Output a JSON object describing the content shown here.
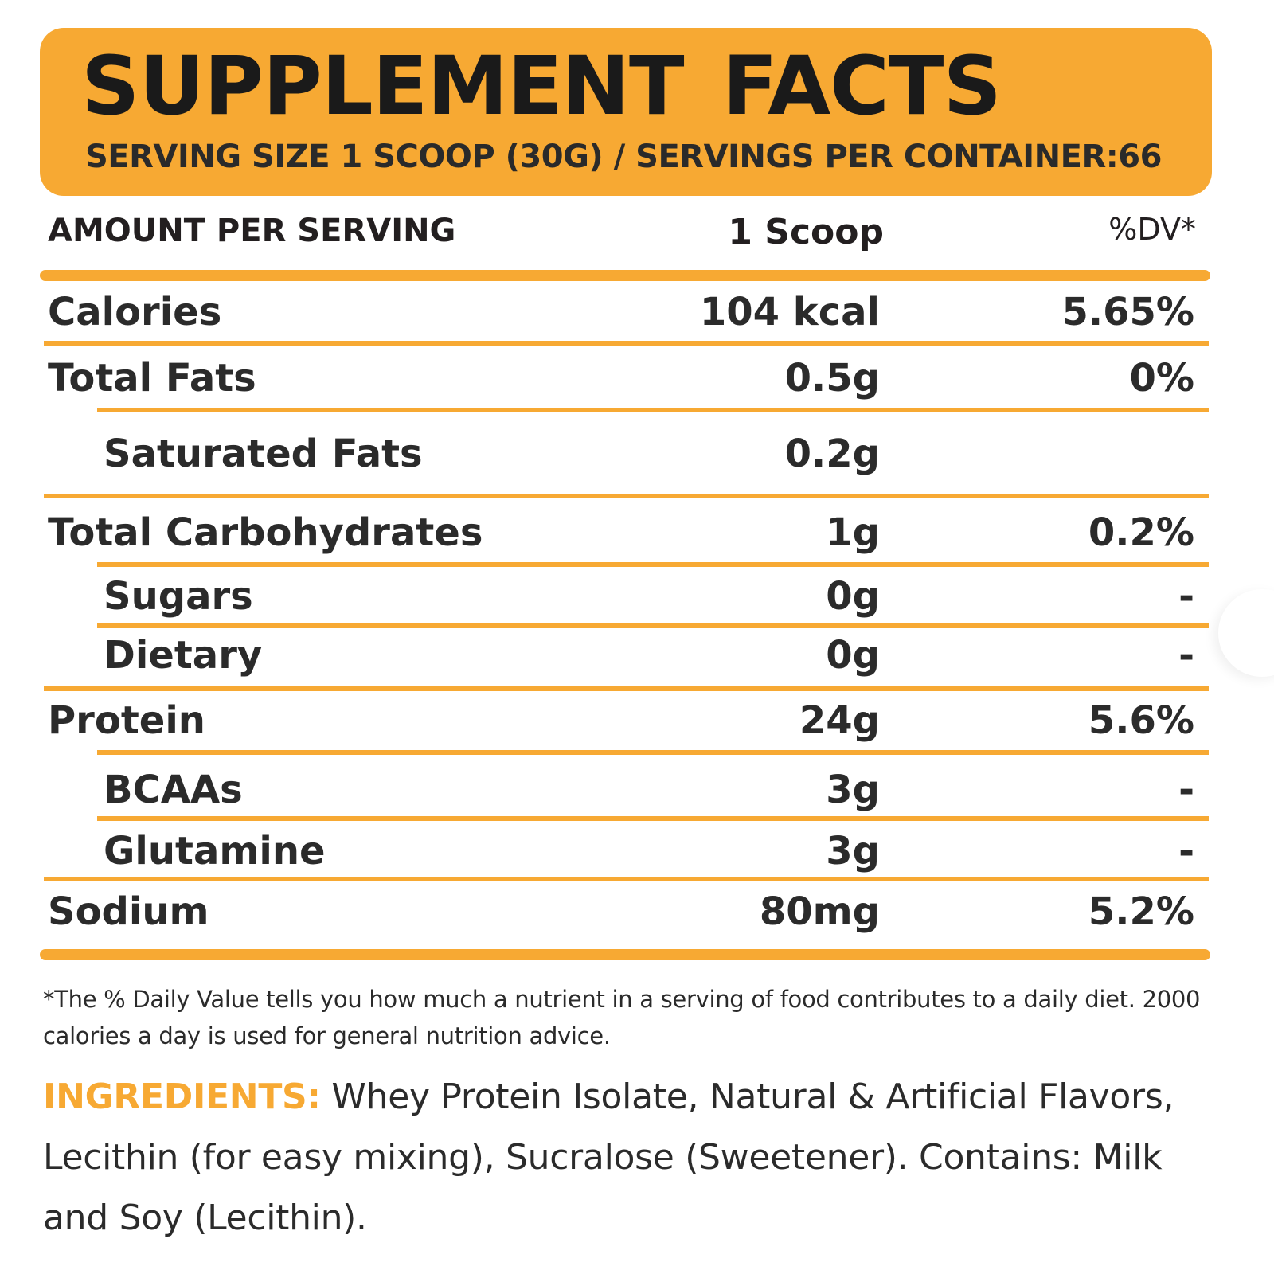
{
  "header": {
    "title": "SUPPLEMENT FACTS",
    "subtitle": "SERVING SIZE 1 SCOOP (30G) / SERVINGS PER CONTAINER:66"
  },
  "columns": {
    "name": "AMOUNT PER SERVING",
    "amount": "1 Scoop",
    "dv": "%DV*"
  },
  "rows": [
    {
      "name": "Calories",
      "amount": "104 kcal",
      "dv": "5.65%"
    },
    {
      "name": "Total Fats",
      "amount": "0.5g",
      "dv": "0%"
    },
    {
      "name": "Saturated Fats",
      "amount": "0.2g",
      "dv": ""
    },
    {
      "name": "Total Carbohydrates",
      "amount": "1g",
      "dv": "0.2%"
    },
    {
      "name": "Sugars",
      "amount": "0g",
      "dv": "-"
    },
    {
      "name": "Dietary",
      "amount": "0g",
      "dv": "-"
    },
    {
      "name": "Protein",
      "amount": "24g",
      "dv": "5.6%"
    },
    {
      "name": "BCAAs",
      "amount": "3g",
      "dv": "-"
    },
    {
      "name": "Glutamine",
      "amount": "3g",
      "dv": "-"
    },
    {
      "name": "Sodium",
      "amount": "80mg",
      "dv": "5.2%"
    }
  ],
  "footnote": "*The % Daily Value tells you how much a nutrient in a serving of food contributes to a daily diet. 2000 calories a day is used for general nutrition advice.",
  "ingredients": {
    "label": "INGREDIENTS:",
    "text": " Whey Protein Isolate, Natural & Artificial Flavors, Lecithin (for easy mixing), Sucralose (Sweetener). Contains: Milk and Soy (Lecithin)."
  },
  "colors": {
    "accent": "#f7a933",
    "text": "#231f20",
    "background": "#ffffff"
  }
}
